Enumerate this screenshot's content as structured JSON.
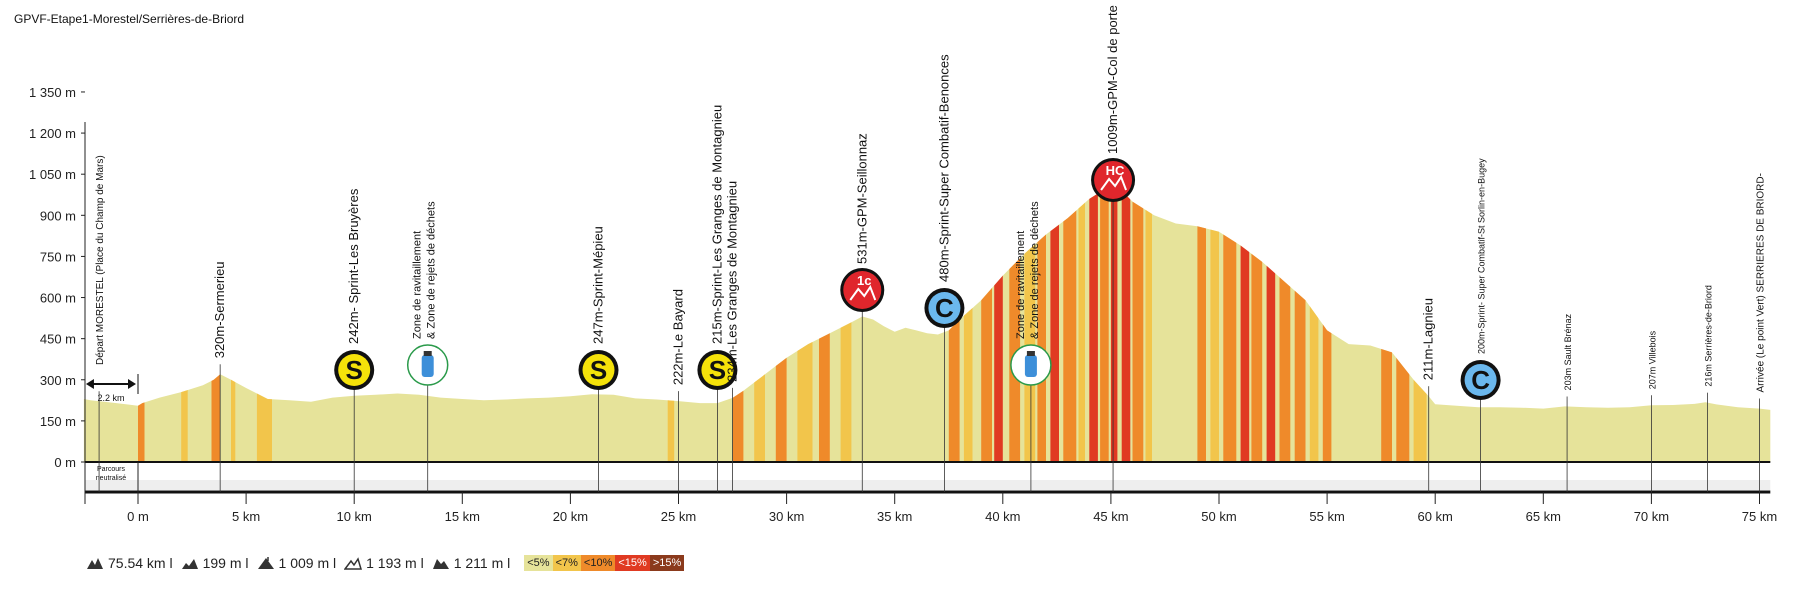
{
  "title": "GPVF-Etape1-Morestel/Serrières-de-Briord",
  "chart_data": {
    "type": "area",
    "xlabel": "",
    "ylabel": "",
    "x_unit": "km",
    "xlim": [
      -2.5,
      75.5
    ],
    "ylim": [
      0,
      1350
    ],
    "y_ticks": [
      0,
      150,
      300,
      450,
      600,
      750,
      900,
      1050,
      1200,
      1350
    ],
    "y_tick_labels": [
      "0 m",
      "150 m",
      "300 m",
      "450 m",
      "600 m",
      "750 m",
      "900 m",
      "1 050 m",
      "1 200 m",
      "1 350 m"
    ],
    "x_ticks": [
      0,
      5,
      10,
      15,
      20,
      25,
      30,
      35,
      40,
      45,
      50,
      55,
      60,
      65,
      70,
      75
    ],
    "x_tick_labels": [
      "0 m",
      "5 km",
      "10 km",
      "15 km",
      "20 km",
      "25 km",
      "30 km",
      "35 km",
      "40 km",
      "45 km",
      "50 km",
      "55 km",
      "60 km",
      "65 km",
      "70 km",
      "75 km"
    ],
    "profile": [
      [
        -2.5,
        230
      ],
      [
        -2.2,
        225
      ],
      [
        -1,
        215
      ],
      [
        0,
        205
      ],
      [
        0.2,
        215
      ],
      [
        1,
        235
      ],
      [
        2,
        255
      ],
      [
        3,
        280
      ],
      [
        3.5,
        300
      ],
      [
        3.8,
        320
      ],
      [
        4.3,
        300
      ],
      [
        5,
        270
      ],
      [
        6,
        230
      ],
      [
        7,
        225
      ],
      [
        8,
        220
      ],
      [
        9,
        235
      ],
      [
        10,
        242
      ],
      [
        11,
        245
      ],
      [
        12,
        250
      ],
      [
        13,
        245
      ],
      [
        14,
        235
      ],
      [
        15,
        230
      ],
      [
        16,
        225
      ],
      [
        17,
        228
      ],
      [
        18,
        232
      ],
      [
        19,
        235
      ],
      [
        20,
        240
      ],
      [
        21,
        247
      ],
      [
        22,
        245
      ],
      [
        23,
        232
      ],
      [
        24,
        228
      ],
      [
        25,
        222
      ],
      [
        26,
        215
      ],
      [
        26.8,
        215
      ],
      [
        27.5,
        234
      ],
      [
        28,
        260
      ],
      [
        29,
        320
      ],
      [
        30,
        380
      ],
      [
        31,
        430
      ],
      [
        32,
        470
      ],
      [
        33,
        510
      ],
      [
        33.5,
        531
      ],
      [
        34,
        520
      ],
      [
        34.5,
        495
      ],
      [
        35,
        475
      ],
      [
        35.5,
        490
      ],
      [
        36,
        480
      ],
      [
        36.5,
        470
      ],
      [
        37,
        465
      ],
      [
        37.5,
        480
      ],
      [
        38,
        520
      ],
      [
        39,
        590
      ],
      [
        40,
        680
      ],
      [
        41,
        760
      ],
      [
        42,
        830
      ],
      [
        43,
        890
      ],
      [
        44,
        960
      ],
      [
        45,
        1009
      ],
      [
        45.5,
        990
      ],
      [
        46,
        950
      ],
      [
        47,
        900
      ],
      [
        48,
        870
      ],
      [
        49,
        860
      ],
      [
        50,
        840
      ],
      [
        51,
        790
      ],
      [
        52,
        730
      ],
      [
        53,
        660
      ],
      [
        54,
        590
      ],
      [
        55,
        480
      ],
      [
        56,
        430
      ],
      [
        57,
        425
      ],
      [
        58,
        400
      ],
      [
        59,
        300
      ],
      [
        59.7,
        240
      ],
      [
        60,
        211
      ],
      [
        61,
        205
      ],
      [
        62,
        200
      ],
      [
        63,
        200
      ],
      [
        64,
        198
      ],
      [
        65,
        195
      ],
      [
        66,
        203
      ],
      [
        67,
        200
      ],
      [
        68,
        198
      ],
      [
        69,
        200
      ],
      [
        70,
        207
      ],
      [
        71,
        208
      ],
      [
        72,
        212
      ],
      [
        72.5,
        218
      ],
      [
        73,
        210
      ],
      [
        74,
        200
      ],
      [
        75,
        195
      ],
      [
        75.5,
        190
      ]
    ],
    "gradient_legend": [
      "<5%",
      "<7%",
      "<10%",
      "<15%",
      ">15%"
    ],
    "gradient_colors": [
      "#e6e39a",
      "#f2c54b",
      "#ef8a2a",
      "#e03a22",
      "#8b3a1c"
    ],
    "neutralized": {
      "start": -2.5,
      "end": 0,
      "label": "2.2 km",
      "label2_line1": "Parcours",
      "label2_line2": "neutralisé"
    },
    "annotations": [
      {
        "x": -1.8,
        "text": "Départ MORESTEL (Place du Champ de Mars)",
        "icon": "none",
        "size": 10,
        "fy": 585
      },
      {
        "x": 3.8,
        "text": "320m-Sermerieu",
        "icon": "none",
        "size": 13
      },
      {
        "x": 10,
        "text": "242m- Sprint-Les Bruyères",
        "icon": "sprint",
        "size": 13
      },
      {
        "x": 13.4,
        "text": "Zone de ravitaillement",
        "text2": "& Zone de rejets de déchets",
        "icon": "bottle",
        "size": 11
      },
      {
        "x": 21.3,
        "text": "247m-Sprint-Mépieu",
        "icon": "sprint",
        "size": 13
      },
      {
        "x": 25,
        "text": "222m-Le Bayard",
        "icon": "none",
        "size": 13
      },
      {
        "x": 26.8,
        "text": "215m-Sprint-Les Granges de Montagnieu",
        "icon": "sprint",
        "size": 13
      },
      {
        "x": 27.5,
        "text": "234m-Les Granges de Montagnieu",
        "icon": "none",
        "size": 13
      },
      {
        "x": 33.5,
        "text": "531m-GPM-Seillonnaz",
        "icon": "gpm",
        "badge": "1c",
        "size": 13
      },
      {
        "x": 37.3,
        "text": "480m-Sprint-Super Combatif-Benonces",
        "icon": "combatif",
        "size": 13
      },
      {
        "x": 41.3,
        "text": "Zone de ravitaillement",
        "text2": "& Zone de rejets de déchets",
        "icon": "bottle",
        "size": 11
      },
      {
        "x": 45.1,
        "text": "1009m-GPM-Col de porte",
        "icon": "gpm",
        "badge": "HC",
        "size": 13
      },
      {
        "x": 59.7,
        "text": "211m-Lagnieu",
        "icon": "none",
        "size": 13
      },
      {
        "x": 62.1,
        "text": "200m-Sprint- Super Combatif-St Sorlin-en-Bugey",
        "icon": "combatif",
        "size": 9
      },
      {
        "x": 66.1,
        "text": "203m Sault Brénaz",
        "icon": "none",
        "size": 9
      },
      {
        "x": 70,
        "text": "207m Villebois",
        "icon": "none",
        "size": 9
      },
      {
        "x": 72.6,
        "text": "216m Serrières-de-Briord",
        "icon": "none",
        "size": 9
      },
      {
        "x": 75,
        "text": "Arrivée (Le point Vert) SERRIERES DE BRIORD-",
        "icon": "none",
        "size": 10
      }
    ],
    "steep_segments": [
      [
        0,
        0.3,
        2
      ],
      [
        2,
        2.3,
        1
      ],
      [
        3.4,
        3.8,
        2
      ],
      [
        4.3,
        4.5,
        1
      ],
      [
        5.5,
        6.2,
        1
      ],
      [
        24.5,
        24.8,
        1
      ],
      [
        27.5,
        28,
        2
      ],
      [
        28.5,
        29,
        1
      ],
      [
        29.5,
        30,
        2
      ],
      [
        30.5,
        31.2,
        1
      ],
      [
        31.5,
        32,
        2
      ],
      [
        32.5,
        33,
        1
      ],
      [
        37.5,
        38,
        2
      ],
      [
        38.2,
        38.6,
        1
      ],
      [
        39,
        39.5,
        2
      ],
      [
        39.6,
        40,
        3
      ],
      [
        40.3,
        40.8,
        2
      ],
      [
        41,
        41.5,
        1
      ],
      [
        41.6,
        42,
        2
      ],
      [
        42.2,
        42.6,
        3
      ],
      [
        42.8,
        43.4,
        2
      ],
      [
        43.5,
        43.8,
        1
      ],
      [
        44,
        44.4,
        3
      ],
      [
        44.5,
        44.9,
        2
      ],
      [
        45,
        45.3,
        3
      ],
      [
        45.5,
        45.9,
        3
      ],
      [
        46,
        46.5,
        2
      ],
      [
        46.6,
        46.9,
        1
      ],
      [
        49,
        49.4,
        2
      ],
      [
        49.6,
        50,
        1
      ],
      [
        50.2,
        50.8,
        2
      ],
      [
        51,
        51.4,
        3
      ],
      [
        51.5,
        52,
        2
      ],
      [
        52.2,
        52.6,
        3
      ],
      [
        52.8,
        53.3,
        2
      ],
      [
        53.5,
        54,
        2
      ],
      [
        54.2,
        54.6,
        1
      ],
      [
        54.8,
        55.2,
        2
      ],
      [
        57.5,
        58,
        2
      ],
      [
        58.2,
        58.8,
        2
      ],
      [
        59,
        59.6,
        1
      ]
    ]
  },
  "stats": [
    {
      "icon": "distance-icon",
      "text": "75.54 km l"
    },
    {
      "icon": "elevation-gain-icon",
      "text": "199 m l"
    },
    {
      "icon": "max-altitude-icon",
      "text": "1 009 m l"
    },
    {
      "icon": "climb-icon",
      "text": "1 193 m l"
    },
    {
      "icon": "descent-icon",
      "text": "1 211 m l"
    }
  ]
}
